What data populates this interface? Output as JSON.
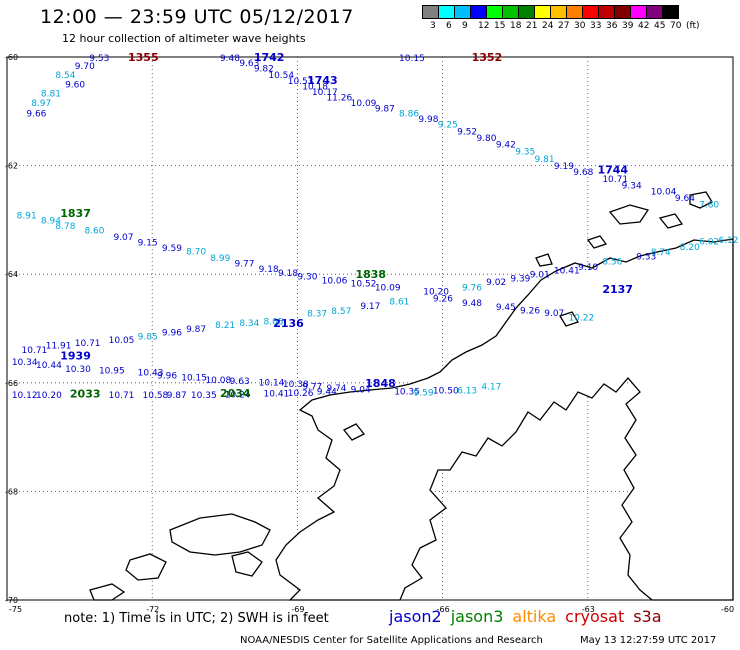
{
  "header": {
    "title": "12:00 — 23:59 UTC 05/12/2017",
    "subtitle": "12 hour collection of altimeter wave heights"
  },
  "colorbar": {
    "colors": [
      "#808080",
      "#00ffff",
      "#00c0ff",
      "#0000ff",
      "#00ff00",
      "#00c000",
      "#008000",
      "#ffff00",
      "#ffc000",
      "#ff8000",
      "#ff0000",
      "#c00000",
      "#800000",
      "#ff00ff",
      "#800080",
      "#000000"
    ],
    "labels": [
      "3",
      "6",
      "9",
      "12",
      "15",
      "18",
      "21",
      "24",
      "27",
      "30",
      "33",
      "36",
      "39",
      "42",
      "45",
      "70",
      "(ft)"
    ]
  },
  "axes": {
    "lon_labels": [
      "-75",
      "-72",
      "-69",
      "-66",
      "-63",
      "-60"
    ],
    "lat_labels": [
      "-60",
      "-62",
      "-64",
      "-66",
      "-68",
      "-70"
    ]
  },
  "passes": [
    {
      "label": "1355",
      "color": "#8b0000",
      "lon": -72.5,
      "lat": -60.07
    },
    {
      "label": "1742",
      "color": "#0000cd",
      "lon": -69.9,
      "lat": -60.07
    },
    {
      "label": "1352",
      "color": "#8b0000",
      "lon": -65.4,
      "lat": -60.07
    },
    {
      "label": "1743",
      "color": "#0000cd",
      "lon": -68.8,
      "lat": -60.5
    },
    {
      "label": "1744",
      "color": "#0000cd",
      "lon": -62.8,
      "lat": -62.15
    },
    {
      "label": "1837",
      "color": "#006400",
      "lon": -73.9,
      "lat": -62.95
    },
    {
      "label": "1838",
      "color": "#006400",
      "lon": -67.8,
      "lat": -64.07
    },
    {
      "label": "2137",
      "color": "#0000cd",
      "lon": -62.7,
      "lat": -64.35
    },
    {
      "label": "2136",
      "color": "#0000cd",
      "lon": -69.5,
      "lat": -64.97
    },
    {
      "label": "1939",
      "color": "#0000cd",
      "lon": -73.9,
      "lat": -65.57
    },
    {
      "label": "1848",
      "color": "#0000cd",
      "lon": -67.6,
      "lat": -66.08
    },
    {
      "label": "2033",
      "color": "#006400",
      "lon": -73.7,
      "lat": -66.27
    },
    {
      "label": "2034",
      "color": "#006400",
      "lon": -70.6,
      "lat": -66.26
    }
  ],
  "observations": [
    {
      "v": "9.53",
      "c": "#0000cd",
      "lon": -73.3,
      "lat": -60.07
    },
    {
      "v": "9.70",
      "c": "#0000cd",
      "lon": -73.6,
      "lat": -60.22
    },
    {
      "v": "8.54",
      "c": "#00a6d6",
      "lon": -74.0,
      "lat": -60.39
    },
    {
      "v": "9.60",
      "c": "#0000cd",
      "lon": -73.8,
      "lat": -60.56
    },
    {
      "v": "8.81",
      "c": "#00a6d6",
      "lon": -74.3,
      "lat": -60.73
    },
    {
      "v": "8.97",
      "c": "#00a6d6",
      "lon": -74.5,
      "lat": -60.9
    },
    {
      "v": "9.66",
      "c": "#0000cd",
      "lon": -74.6,
      "lat": -61.1
    },
    {
      "v": "9.48",
      "c": "#0000cd",
      "lon": -70.6,
      "lat": -60.07
    },
    {
      "v": "9.63",
      "c": "#0000cd",
      "lon": -70.2,
      "lat": -60.17
    },
    {
      "v": "9.82",
      "c": "#0000cd",
      "lon": -69.9,
      "lat": -60.27
    },
    {
      "v": "10.54",
      "c": "#0000cd",
      "lon": -69.6,
      "lat": -60.39
    },
    {
      "v": "10.53",
      "c": "#0000cd",
      "lon": -69.2,
      "lat": -60.5
    },
    {
      "v": "10.18",
      "c": "#0000cd",
      "lon": -68.9,
      "lat": -60.6
    },
    {
      "v": "10.17",
      "c": "#0000cd",
      "lon": -68.7,
      "lat": -60.7
    },
    {
      "v": "11.26",
      "c": "#0000cd",
      "lon": -68.4,
      "lat": -60.8
    },
    {
      "v": "10.09",
      "c": "#0000cd",
      "lon": -67.9,
      "lat": -60.9
    },
    {
      "v": "9.87",
      "c": "#0000cd",
      "lon": -67.4,
      "lat": -61.0
    },
    {
      "v": "8.86",
      "c": "#00a6d6",
      "lon": -66.9,
      "lat": -61.1
    },
    {
      "v": "9.98",
      "c": "#0000cd",
      "lon": -66.5,
      "lat": -61.2
    },
    {
      "v": "9.25",
      "c": "#00a6d6",
      "lon": -66.1,
      "lat": -61.3
    },
    {
      "v": "9.52",
      "c": "#0000cd",
      "lon": -65.7,
      "lat": -61.43
    },
    {
      "v": "9.80",
      "c": "#0000cd",
      "lon": -65.3,
      "lat": -61.55
    },
    {
      "v": "9.42",
      "c": "#0000cd",
      "lon": -64.9,
      "lat": -61.67
    },
    {
      "v": "9.35",
      "c": "#00a6d6",
      "lon": -64.5,
      "lat": -61.8
    },
    {
      "v": "9.81",
      "c": "#00a6d6",
      "lon": -64.1,
      "lat": -61.93
    },
    {
      "v": "9.19",
      "c": "#0000cd",
      "lon": -63.7,
      "lat": -62.06
    },
    {
      "v": "9.68",
      "c": "#0000cd",
      "lon": -63.3,
      "lat": -62.17
    },
    {
      "v": "10.71",
      "c": "#0000cd",
      "lon": -62.7,
      "lat": -62.3
    },
    {
      "v": "9.34",
      "c": "#0000cd",
      "lon": -62.3,
      "lat": -62.42
    },
    {
      "v": "10.04",
      "c": "#0000cd",
      "lon": -61.7,
      "lat": -62.53
    },
    {
      "v": "9.64",
      "c": "#0000cd",
      "lon": -61.2,
      "lat": -62.65
    },
    {
      "v": "7.80",
      "c": "#00a6d6",
      "lon": -60.7,
      "lat": -62.77
    },
    {
      "v": "10.15",
      "c": "#0000cd",
      "lon": -66.9,
      "lat": -60.07
    },
    {
      "v": "8.91",
      "c": "#00a6d6",
      "lon": -74.8,
      "lat": -62.97
    },
    {
      "v": "8.94",
      "c": "#00a6d6",
      "lon": -74.3,
      "lat": -63.07
    },
    {
      "v": "8.78",
      "c": "#00a6d6",
      "lon": -74.0,
      "lat": -63.17
    },
    {
      "v": "8.60",
      "c": "#00a6d6",
      "lon": -73.4,
      "lat": -63.25
    },
    {
      "v": "9.07",
      "c": "#0000cd",
      "lon": -72.8,
      "lat": -63.37
    },
    {
      "v": "9.15",
      "c": "#0000cd",
      "lon": -72.3,
      "lat": -63.47
    },
    {
      "v": "9.59",
      "c": "#0000cd",
      "lon": -71.8,
      "lat": -63.57
    },
    {
      "v": "8.70",
      "c": "#00a6d6",
      "lon": -71.3,
      "lat": -63.64
    },
    {
      "v": "8.99",
      "c": "#00a6d6",
      "lon": -70.8,
      "lat": -63.76
    },
    {
      "v": "9.77",
      "c": "#0000cd",
      "lon": -70.3,
      "lat": -63.86
    },
    {
      "v": "9.18",
      "c": "#0000cd",
      "lon": -69.8,
      "lat": -63.96
    },
    {
      "v": "9.18",
      "c": "#0000cd",
      "lon": -69.4,
      "lat": -64.03
    },
    {
      "v": "9.30",
      "c": "#0000cd",
      "lon": -69.0,
      "lat": -64.1
    },
    {
      "v": "10.06",
      "c": "#0000cd",
      "lon": -68.5,
      "lat": -64.17
    },
    {
      "v": "10.52",
      "c": "#0000cd",
      "lon": -67.9,
      "lat": -64.23
    },
    {
      "v": "10.09",
      "c": "#0000cd",
      "lon": -67.4,
      "lat": -64.3
    },
    {
      "v": "10.20",
      "c": "#0000cd",
      "lon": -66.4,
      "lat": -64.37
    },
    {
      "v": "9.76",
      "c": "#00a6d6",
      "lon": -65.6,
      "lat": -64.3
    },
    {
      "v": "9.02",
      "c": "#0000cd",
      "lon": -65.1,
      "lat": -64.2
    },
    {
      "v": "9.39",
      "c": "#0000cd",
      "lon": -64.6,
      "lat": -64.13
    },
    {
      "v": "9.01",
      "c": "#0000cd",
      "lon": -64.2,
      "lat": -64.06
    },
    {
      "v": "10.41",
      "c": "#0000cd",
      "lon": -63.7,
      "lat": -63.99
    },
    {
      "v": "9.10",
      "c": "#0000cd",
      "lon": -63.2,
      "lat": -63.92
    },
    {
      "v": "8.56",
      "c": "#00a6d6",
      "lon": -62.7,
      "lat": -63.82
    },
    {
      "v": "9.33",
      "c": "#0000cd",
      "lon": -62.0,
      "lat": -63.73
    },
    {
      "v": "8.74",
      "c": "#00a6d6",
      "lon": -61.7,
      "lat": -63.65
    },
    {
      "v": "8.20",
      "c": "#00a6d6",
      "lon": -61.1,
      "lat": -63.55
    },
    {
      "v": "6.02",
      "c": "#00a6d6",
      "lon": -60.7,
      "lat": -63.45
    },
    {
      "v": "6.12",
      "c": "#00a6d6",
      "lon": -60.3,
      "lat": -63.43
    },
    {
      "v": "10.71",
      "c": "#0000cd",
      "lon": -74.7,
      "lat": -65.45
    },
    {
      "v": "11.91",
      "c": "#0000cd",
      "lon": -74.2,
      "lat": -65.37
    },
    {
      "v": "10.71",
      "c": "#0000cd",
      "lon": -73.6,
      "lat": -65.32
    },
    {
      "v": "10.05",
      "c": "#0000cd",
      "lon": -72.9,
      "lat": -65.27
    },
    {
      "v": "9.85",
      "c": "#00a6d6",
      "lon": -72.3,
      "lat": -65.2
    },
    {
      "v": "9.96",
      "c": "#0000cd",
      "lon": -71.8,
      "lat": -65.13
    },
    {
      "v": "9.87",
      "c": "#0000cd",
      "lon": -71.3,
      "lat": -65.06
    },
    {
      "v": "8.21",
      "c": "#00a6d6",
      "lon": -70.7,
      "lat": -64.99
    },
    {
      "v": "8.34",
      "c": "#00a6d6",
      "lon": -70.2,
      "lat": -64.95
    },
    {
      "v": "8.05",
      "c": "#00a6d6",
      "lon": -69.7,
      "lat": -64.93
    },
    {
      "v": "8.37",
      "c": "#00a6d6",
      "lon": -68.8,
      "lat": -64.78
    },
    {
      "v": "8.57",
      "c": "#00a6d6",
      "lon": -68.3,
      "lat": -64.73
    },
    {
      "v": "9.17",
      "c": "#0000cd",
      "lon": -67.7,
      "lat": -64.64
    },
    {
      "v": "8.61",
      "c": "#00a6d6",
      "lon": -67.1,
      "lat": -64.56
    },
    {
      "v": "9.26",
      "c": "#0000cd",
      "lon": -66.2,
      "lat": -64.5
    },
    {
      "v": "9.48",
      "c": "#0000cd",
      "lon": -65.6,
      "lat": -64.59
    },
    {
      "v": "9.45",
      "c": "#0000cd",
      "lon": -64.9,
      "lat": -64.66
    },
    {
      "v": "9.26",
      "c": "#0000cd",
      "lon": -64.4,
      "lat": -64.72
    },
    {
      "v": "9.07",
      "c": "#0000cd",
      "lon": -63.9,
      "lat": -64.77
    },
    {
      "v": "10.22",
      "c": "#00a6d6",
      "lon": -63.4,
      "lat": -64.85
    },
    {
      "v": "10.34",
      "c": "#0000cd",
      "lon": -74.9,
      "lat": -65.67
    },
    {
      "v": "10.44",
      "c": "#0000cd",
      "lon": -74.4,
      "lat": -65.73
    },
    {
      "v": "10.30",
      "c": "#0000cd",
      "lon": -73.8,
      "lat": -65.8
    },
    {
      "v": "10.95",
      "c": "#0000cd",
      "lon": -73.1,
      "lat": -65.83
    },
    {
      "v": "10.43",
      "c": "#0000cd",
      "lon": -72.3,
      "lat": -65.87
    },
    {
      "v": "9.96",
      "c": "#0000cd",
      "lon": -71.9,
      "lat": -65.92
    },
    {
      "v": "10.15",
      "c": "#0000cd",
      "lon": -71.4,
      "lat": -65.96
    },
    {
      "v": "10.08",
      "c": "#0000cd",
      "lon": -70.9,
      "lat": -66.0
    },
    {
      "v": "9.63",
      "c": "#0000cd",
      "lon": -70.4,
      "lat": -66.02
    },
    {
      "v": "10.14",
      "c": "#0000cd",
      "lon": -69.8,
      "lat": -66.05
    },
    {
      "v": "10.38",
      "c": "#0000cd",
      "lon": -69.3,
      "lat": -66.08
    },
    {
      "v": "9.77",
      "c": "#0000cd",
      "lon": -68.9,
      "lat": -66.12
    },
    {
      "v": "9.74",
      "c": "#0000cd",
      "lon": -68.4,
      "lat": -66.15
    },
    {
      "v": "9.04",
      "c": "#0000cd",
      "lon": -67.9,
      "lat": -66.18
    },
    {
      "v": "10.35",
      "c": "#0000cd",
      "lon": -67.0,
      "lat": -66.22
    },
    {
      "v": "9.59",
      "c": "#00a6d6",
      "lon": -66.6,
      "lat": -66.23
    },
    {
      "v": "10.50",
      "c": "#0000cd",
      "lon": -66.2,
      "lat": -66.2
    },
    {
      "v": "6.13",
      "c": "#00a6d6",
      "lon": -65.7,
      "lat": -66.2
    },
    {
      "v": "4.17",
      "c": "#00a6d6",
      "lon": -65.2,
      "lat": -66.12
    },
    {
      "v": "10.12",
      "c": "#0000cd",
      "lon": -74.9,
      "lat": -66.28
    },
    {
      "v": "10.20",
      "c": "#0000cd",
      "lon": -74.4,
      "lat": -66.28
    },
    {
      "v": "10.71",
      "c": "#0000cd",
      "lon": -72.9,
      "lat": -66.28
    },
    {
      "v": "10.58",
      "c": "#0000cd",
      "lon": -72.2,
      "lat": -66.28
    },
    {
      "v": "9.87",
      "c": "#0000cd",
      "lon": -71.7,
      "lat": -66.28
    },
    {
      "v": "10.35",
      "c": "#0000cd",
      "lon": -71.2,
      "lat": -66.28
    },
    {
      "v": "10.24",
      "c": "#0000cd",
      "lon": -70.5,
      "lat": -66.27
    },
    {
      "v": "10.41",
      "c": "#0000cd",
      "lon": -69.7,
      "lat": -66.25
    },
    {
      "v": "10.26",
      "c": "#0000cd",
      "lon": -69.2,
      "lat": -66.24
    },
    {
      "v": "9.44",
      "c": "#0000cd",
      "lon": -68.6,
      "lat": -66.22
    }
  ],
  "footer": {
    "note": "note:  1) Time is in UTC;  2) SWH is in feet",
    "satellites": [
      {
        "name": "jason2",
        "color": "#0000cd"
      },
      {
        "name": "jason3",
        "color": "#008000"
      },
      {
        "name": "altika",
        "color": "#ff8c00"
      },
      {
        "name": "cryosat",
        "color": "#cc0000"
      },
      {
        "name": "s3a",
        "color": "#8b0000"
      }
    ],
    "credit": "NOAA/NESDIS Center for Satellite Applications and Research",
    "timestamp": "May 13 12:27:59 UTC 2017"
  }
}
